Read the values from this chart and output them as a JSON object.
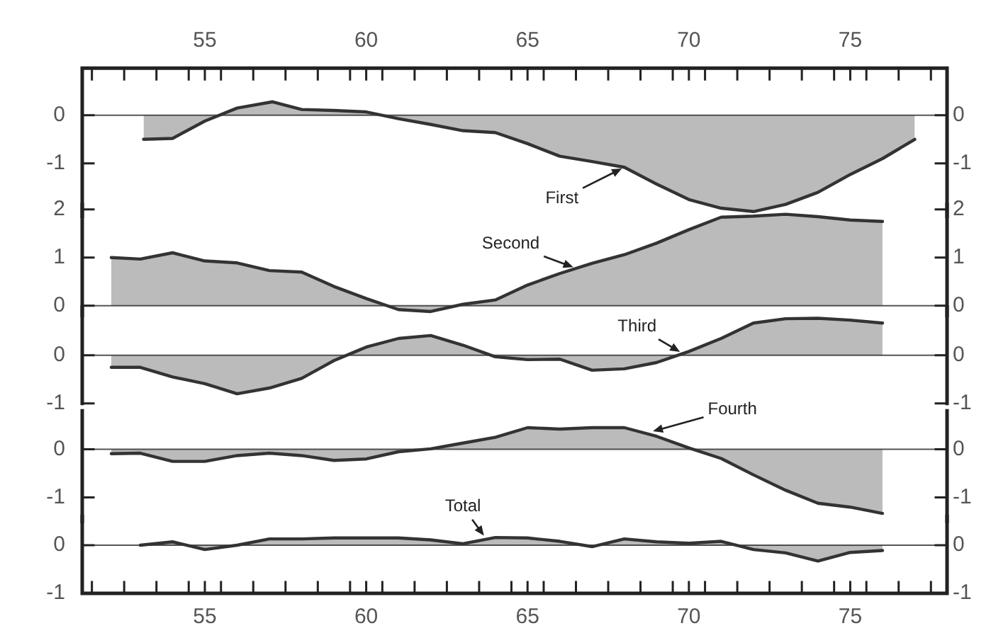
{
  "chart_data": [
    {
      "type": "area",
      "x": [
        53.1,
        54,
        55,
        56,
        57.1,
        58,
        59,
        60,
        61,
        62,
        63,
        64,
        65,
        66,
        67,
        68,
        69,
        70,
        71,
        72,
        73,
        74,
        75,
        76,
        77
      ],
      "series": [
        {
          "color": "#333333",
          "values": [
            -0.5,
            -0.48,
            -0.12,
            0.15,
            0.28,
            0.12,
            0.1,
            0.07,
            -0.07,
            -0.19,
            -0.32,
            -0.36,
            -0.59,
            -0.85,
            -0.96,
            -1.08,
            -1.43,
            -1.75,
            -1.93,
            -2.0,
            -1.85,
            -1.6,
            -1.23,
            -0.9,
            -0.5
          ]
        }
      ],
      "xlim": [
        51.2,
        78
      ],
      "x2lim": [
        51.2,
        78
      ],
      "x2ticks": [
        55,
        60,
        65,
        70,
        75,
        {
          "value": 51.5,
          "label": null
        },
        {
          "value": 52.5,
          "label": null
        },
        {
          "value": 53.5,
          "label": null
        },
        {
          "value": 54.5,
          "label": null
        },
        {
          "value": 55.5,
          "label": null
        },
        {
          "value": 56.5,
          "label": null
        },
        {
          "value": 57.5,
          "label": null
        },
        {
          "value": 58.5,
          "label": null
        },
        {
          "value": 59.5,
          "label": null
        },
        {
          "value": 60.5,
          "label": null
        },
        {
          "value": 61.5,
          "label": null
        },
        {
          "value": 62.5,
          "label": null
        },
        {
          "value": 63.5,
          "label": null
        },
        {
          "value": 64.5,
          "label": null
        },
        {
          "value": 65.5,
          "label": null
        },
        {
          "value": 66.5,
          "label": null
        },
        {
          "value": 67.5,
          "label": null
        },
        {
          "value": 68.5,
          "label": null
        },
        {
          "value": 69.5,
          "label": null
        },
        {
          "value": 70.5,
          "label": null
        },
        {
          "value": 71.5,
          "label": null
        },
        {
          "value": 72.5,
          "label": null
        },
        {
          "value": 73.5,
          "label": null
        },
        {
          "value": 74.5,
          "label": null
        },
        {
          "value": 75.5,
          "label": null
        },
        {
          "value": 76.5,
          "label": null
        },
        {
          "value": 77.5,
          "label": null
        }
      ],
      "ylim": [
        -2.1,
        0.98
      ],
      "yticks": [
        0,
        -1
      ],
      "y2lim": [
        -2.1,
        0.98
      ],
      "y2ticks": [
        0,
        -1
      ],
      "ref_lines": [
        {
          "axis": "y",
          "value": 0
        }
      ],
      "annotations": [
        {
          "text": "First",
          "x": 68,
          "y": -1.08
        }
      ],
      "tick_labels": "y",
      "grid": false,
      "legend": false
    },
    {
      "type": "area",
      "x": [
        52.1,
        53,
        54,
        55,
        56,
        57,
        58,
        59,
        60,
        61,
        62,
        63,
        64,
        65,
        66,
        67,
        68,
        69,
        70,
        71,
        72,
        73,
        74,
        75,
        76
      ],
      "series": [
        {
          "color": "#333333",
          "values": [
            1.0,
            0.97,
            1.1,
            0.93,
            0.89,
            0.73,
            0.7,
            0.4,
            0.15,
            -0.08,
            -0.12,
            0.03,
            0.12,
            0.43,
            0.67,
            0.88,
            1.06,
            1.3,
            1.58,
            1.84,
            1.86,
            1.9,
            1.85,
            1.78,
            1.75
          ]
        }
      ],
      "xlim": [
        51.2,
        78
      ],
      "ylim": [
        -0.2,
        2.1
      ],
      "yticks": [
        2,
        1,
        0
      ],
      "y2lim": [
        -0.2,
        2.1
      ],
      "y2ticks": [
        2,
        1,
        0
      ],
      "ref_lines": [
        {
          "axis": "y",
          "value": 0
        }
      ],
      "annotations": [
        {
          "text": "Second",
          "x": 66.5,
          "y": 0.78
        }
      ],
      "tick_labels": "y",
      "grid": false,
      "legend": false
    },
    {
      "type": "area",
      "x": [
        52.1,
        53,
        54,
        55,
        56,
        57,
        58,
        59,
        60,
        61,
        62,
        63,
        64,
        65,
        66,
        67,
        68,
        69,
        70,
        71,
        72,
        73,
        74,
        75,
        76
      ],
      "series": [
        {
          "color": "#333333",
          "values": [
            -0.25,
            -0.25,
            -0.45,
            -0.59,
            -0.8,
            -0.68,
            -0.48,
            -0.11,
            0.17,
            0.35,
            0.41,
            0.21,
            -0.03,
            -0.09,
            -0.08,
            -0.31,
            -0.28,
            -0.15,
            0.08,
            0.35,
            0.67,
            0.76,
            0.77,
            0.73,
            0.67
          ]
        }
      ],
      "xlim": [
        51.2,
        78
      ],
      "ylim": [
        -1,
        1
      ],
      "yticks": [
        0,
        -1
      ],
      "y2lim": [
        -1,
        1
      ],
      "y2ticks": [
        0,
        -1
      ],
      "ref_lines": [
        {
          "axis": "y",
          "value": 0
        }
      ],
      "annotations": [
        {
          "text": "Third",
          "x": 69.8,
          "y": 0.04
        }
      ],
      "tick_labels": "y",
      "grid": false,
      "legend": false
    },
    {
      "type": "area",
      "x": [
        52.1,
        53,
        54,
        55,
        56,
        57,
        58,
        59,
        60,
        61,
        62,
        63,
        64,
        65,
        66,
        67,
        68,
        69,
        70,
        71,
        72,
        73,
        74,
        75,
        76
      ],
      "series": [
        {
          "color": "#333333",
          "values": [
            -0.09,
            -0.08,
            -0.25,
            -0.25,
            -0.13,
            -0.08,
            -0.13,
            -0.23,
            -0.2,
            -0.05,
            0.01,
            0.13,
            0.25,
            0.45,
            0.42,
            0.45,
            0.45,
            0.27,
            0.03,
            -0.19,
            -0.53,
            -0.85,
            -1.12,
            -1.2,
            -1.33
          ]
        }
      ],
      "xlim": [
        51.2,
        78
      ],
      "ylim": [
        -1.5,
        0.8
      ],
      "yticks": [
        0,
        -1
      ],
      "y2lim": [
        -1.5,
        0.8
      ],
      "y2ticks": [
        0,
        -1
      ],
      "ref_lines": [
        {
          "axis": "y",
          "value": 0
        }
      ],
      "annotations": [
        {
          "text": "Fourth",
          "x": 68.8,
          "y": 0.36
        }
      ],
      "tick_labels": "y",
      "grid": false,
      "legend": false
    },
    {
      "type": "area",
      "x": [
        53,
        54,
        55,
        56,
        57,
        58,
        59,
        60,
        61,
        62,
        63,
        64,
        65,
        66,
        67,
        68,
        69,
        70,
        71,
        72,
        73,
        74,
        75,
        76
      ],
      "series": [
        {
          "color": "#333333",
          "values": [
            0,
            0.07,
            -0.09,
            0,
            0.13,
            0.13,
            0.15,
            0.15,
            0.15,
            0.11,
            0.03,
            0.16,
            0.15,
            0.08,
            -0.03,
            0.13,
            0.07,
            0.04,
            0.08,
            -0.09,
            -0.16,
            -0.33,
            -0.15,
            -0.11
          ]
        }
      ],
      "xlim": [
        51.2,
        78
      ],
      "xticks": [
        55,
        60,
        65,
        70,
        75,
        {
          "value": 51.5,
          "label": null
        },
        {
          "value": 52.5,
          "label": null
        },
        {
          "value": 53.5,
          "label": null
        },
        {
          "value": 54.5,
          "label": null
        },
        {
          "value": 55.5,
          "label": null
        },
        {
          "value": 56.5,
          "label": null
        },
        {
          "value": 57.5,
          "label": null
        },
        {
          "value": 58.5,
          "label": null
        },
        {
          "value": 59.5,
          "label": null
        },
        {
          "value": 60.5,
          "label": null
        },
        {
          "value": 61.5,
          "label": null
        },
        {
          "value": 62.5,
          "label": null
        },
        {
          "value": 63.5,
          "label": null
        },
        {
          "value": 64.5,
          "label": null
        },
        {
          "value": 65.5,
          "label": null
        },
        {
          "value": 66.5,
          "label": null
        },
        {
          "value": 67.5,
          "label": null
        },
        {
          "value": 68.5,
          "label": null
        },
        {
          "value": 69.5,
          "label": null
        },
        {
          "value": 70.5,
          "label": null
        },
        {
          "value": 71.5,
          "label": null
        },
        {
          "value": 72.5,
          "label": null
        },
        {
          "value": 73.5,
          "label": null
        },
        {
          "value": 74.5,
          "label": null
        },
        {
          "value": 75.5,
          "label": null
        },
        {
          "value": 76.5,
          "label": null
        },
        {
          "value": 77.5,
          "label": null
        }
      ],
      "ylim": [
        -1,
        0.6
      ],
      "yticks": [
        0,
        -1
      ],
      "y2lim": [
        -1,
        0.6
      ],
      "y2ticks": [
        0,
        -1
      ],
      "ref_lines": [
        {
          "axis": "y",
          "value": 0
        }
      ],
      "annotations": [
        {
          "text": "Total",
          "x": 63.7,
          "y": 0.15
        }
      ],
      "grid": false,
      "legend": false
    }
  ]
}
